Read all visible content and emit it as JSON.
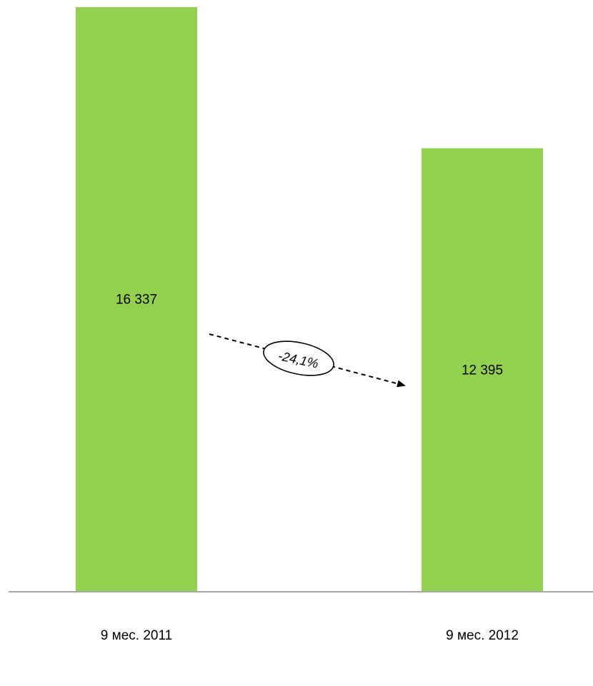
{
  "chart_data": {
    "type": "bar",
    "categories": [
      "9 мес. 2011",
      "9 мес. 2012"
    ],
    "values": [
      16337,
      12395
    ],
    "value_labels": [
      "16 337",
      "12 395"
    ],
    "ylim": [
      0,
      16337
    ],
    "grid": false,
    "legend": "none",
    "bar_color": "#92D050",
    "annotation": {
      "text": "-24,1%",
      "from": "9 мес. 2011",
      "to": "9 мес. 2012",
      "style": "dashed-arrow"
    }
  }
}
